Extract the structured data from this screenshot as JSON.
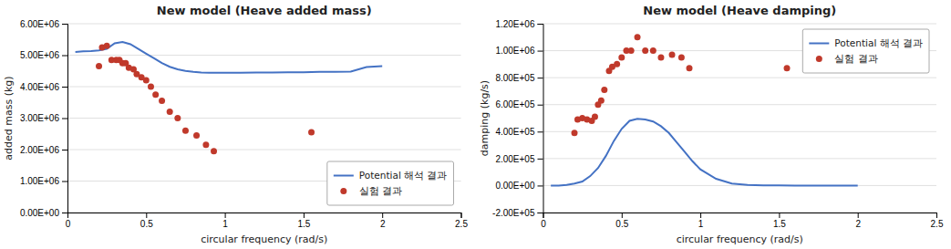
{
  "chart_data": [
    {
      "type": "line",
      "title": "New model (Heave added mass)",
      "x_label": "circular frequency (rad/s)",
      "y_label": "added mass (kg)",
      "xlim": [
        0,
        2.5
      ],
      "xticks": [
        0,
        0.5,
        1,
        1.5,
        2,
        2.5
      ],
      "ylim": [
        0.0,
        6000000.0
      ],
      "yticks": [
        {
          "value": 0.0,
          "label": "0.00E+00"
        },
        {
          "value": 1000000.0,
          "label": "1.00E+06"
        },
        {
          "value": 2000000.0,
          "label": "2.00E+06"
        },
        {
          "value": 3000000.0,
          "label": "3.00E+06"
        },
        {
          "value": 4000000.0,
          "label": "4.00E+06"
        },
        {
          "value": 5000000.0,
          "label": "5.00E+06"
        },
        {
          "value": 6000000.0,
          "label": "6.00E+06"
        }
      ],
      "grid": "y",
      "legend": "lower right",
      "series": [
        {
          "name": "Potential 해석 결과",
          "type": "line",
          "color": "#4472C4",
          "x": [
            0.05,
            0.1,
            0.15,
            0.2,
            0.25,
            0.3,
            0.35,
            0.4,
            0.45,
            0.5,
            0.55,
            0.6,
            0.65,
            0.7,
            0.75,
            0.8,
            0.85,
            0.9,
            0.95,
            1.0,
            1.1,
            1.2,
            1.3,
            1.4,
            1.5,
            1.6,
            1.7,
            1.8,
            1.9,
            2.0
          ],
          "values": [
            5100000.0,
            5120000.0,
            5130000.0,
            5150000.0,
            5200000.0,
            5380000.0,
            5420000.0,
            5350000.0,
            5200000.0,
            5050000.0,
            4900000.0,
            4750000.0,
            4630000.0,
            4550000.0,
            4500000.0,
            4470000.0,
            4450000.0,
            4440000.0,
            4440000.0,
            4440000.0,
            4440000.0,
            4450000.0,
            4450000.0,
            4460000.0,
            4460000.0,
            4470000.0,
            4470000.0,
            4480000.0,
            4620000.0,
            4650000.0
          ]
        },
        {
          "name": "실험 결과",
          "type": "scatter",
          "color": "#C0392B",
          "x": [
            0.2,
            0.22,
            0.25,
            0.28,
            0.31,
            0.33,
            0.35,
            0.37,
            0.39,
            0.42,
            0.44,
            0.47,
            0.5,
            0.53,
            0.56,
            0.6,
            0.65,
            0.7,
            0.75,
            0.82,
            0.88,
            0.93,
            1.55
          ],
          "values": [
            4650000.0,
            5250000.0,
            5300000.0,
            4850000.0,
            4850000.0,
            4850000.0,
            4750000.0,
            4750000.0,
            4600000.0,
            4550000.0,
            4400000.0,
            4300000.0,
            4200000.0,
            4000000.0,
            3750000.0,
            3550000.0,
            3200000.0,
            3000000.0,
            2600000.0,
            2450000.0,
            2150000.0,
            1950000.0,
            2550000.0
          ]
        }
      ]
    },
    {
      "type": "line",
      "title": "New model (Heave damping)",
      "x_label": "circular frequency (rad/s)",
      "y_label": "damping (kg/s)",
      "xlim": [
        0,
        2.5
      ],
      "xticks": [
        0,
        0.5,
        1,
        1.5,
        2,
        2.5
      ],
      "ylim": [
        -200000.0,
        1200000.0
      ],
      "yticks": [
        {
          "value": -200000.0,
          "label": "-2.00E+05"
        },
        {
          "value": 0.0,
          "label": "0.00E+00"
        },
        {
          "value": 200000.0,
          "label": "2.00E+05"
        },
        {
          "value": 400000.0,
          "label": "4.00E+05"
        },
        {
          "value": 600000.0,
          "label": "6.00E+05"
        },
        {
          "value": 800000.0,
          "label": "8.00E+05"
        },
        {
          "value": 1000000.0,
          "label": "1.00E+06"
        },
        {
          "value": 1200000.0,
          "label": "1.20E+06"
        }
      ],
      "grid": "y",
      "legend": "upper right",
      "series": [
        {
          "name": "Potential 해석 결과",
          "type": "line",
          "color": "#4472C4",
          "x": [
            0.05,
            0.1,
            0.15,
            0.2,
            0.25,
            0.3,
            0.35,
            0.4,
            0.45,
            0.5,
            0.55,
            0.6,
            0.65,
            0.7,
            0.75,
            0.8,
            0.85,
            0.9,
            0.95,
            1.0,
            1.1,
            1.2,
            1.3,
            1.4,
            1.5,
            1.6,
            1.7,
            1.8,
            1.9,
            2.0
          ],
          "values": [
            0.0,
            0.0,
            5000.0,
            15000.0,
            30000.0,
            70000.0,
            130000.0,
            220000.0,
            330000.0,
            420000.0,
            480000.0,
            495000.0,
            490000.0,
            475000.0,
            440000.0,
            390000.0,
            320000.0,
            250000.0,
            180000.0,
            120000.0,
            50000.0,
            15000.0,
            5000.0,
            2000.0,
            500.0,
            100.0,
            0.0,
            0.0,
            0.0,
            -1000.0
          ]
        },
        {
          "name": "실험 결과",
          "type": "scatter",
          "color": "#C0392B",
          "x": [
            0.2,
            0.22,
            0.25,
            0.28,
            0.31,
            0.33,
            0.35,
            0.37,
            0.39,
            0.42,
            0.44,
            0.47,
            0.5,
            0.53,
            0.56,
            0.6,
            0.65,
            0.7,
            0.75,
            0.82,
            0.88,
            0.93,
            1.55
          ],
          "values": [
            390000.0,
            490000.0,
            500000.0,
            490000.0,
            480000.0,
            510000.0,
            600000.0,
            630000.0,
            710000.0,
            850000.0,
            880000.0,
            900000.0,
            950000.0,
            1000000.0,
            1000000.0,
            1100000.0,
            1000000.0,
            1000000.0,
            950000.0,
            970000.0,
            950000.0,
            870000.0,
            870000.0
          ]
        }
      ]
    }
  ]
}
